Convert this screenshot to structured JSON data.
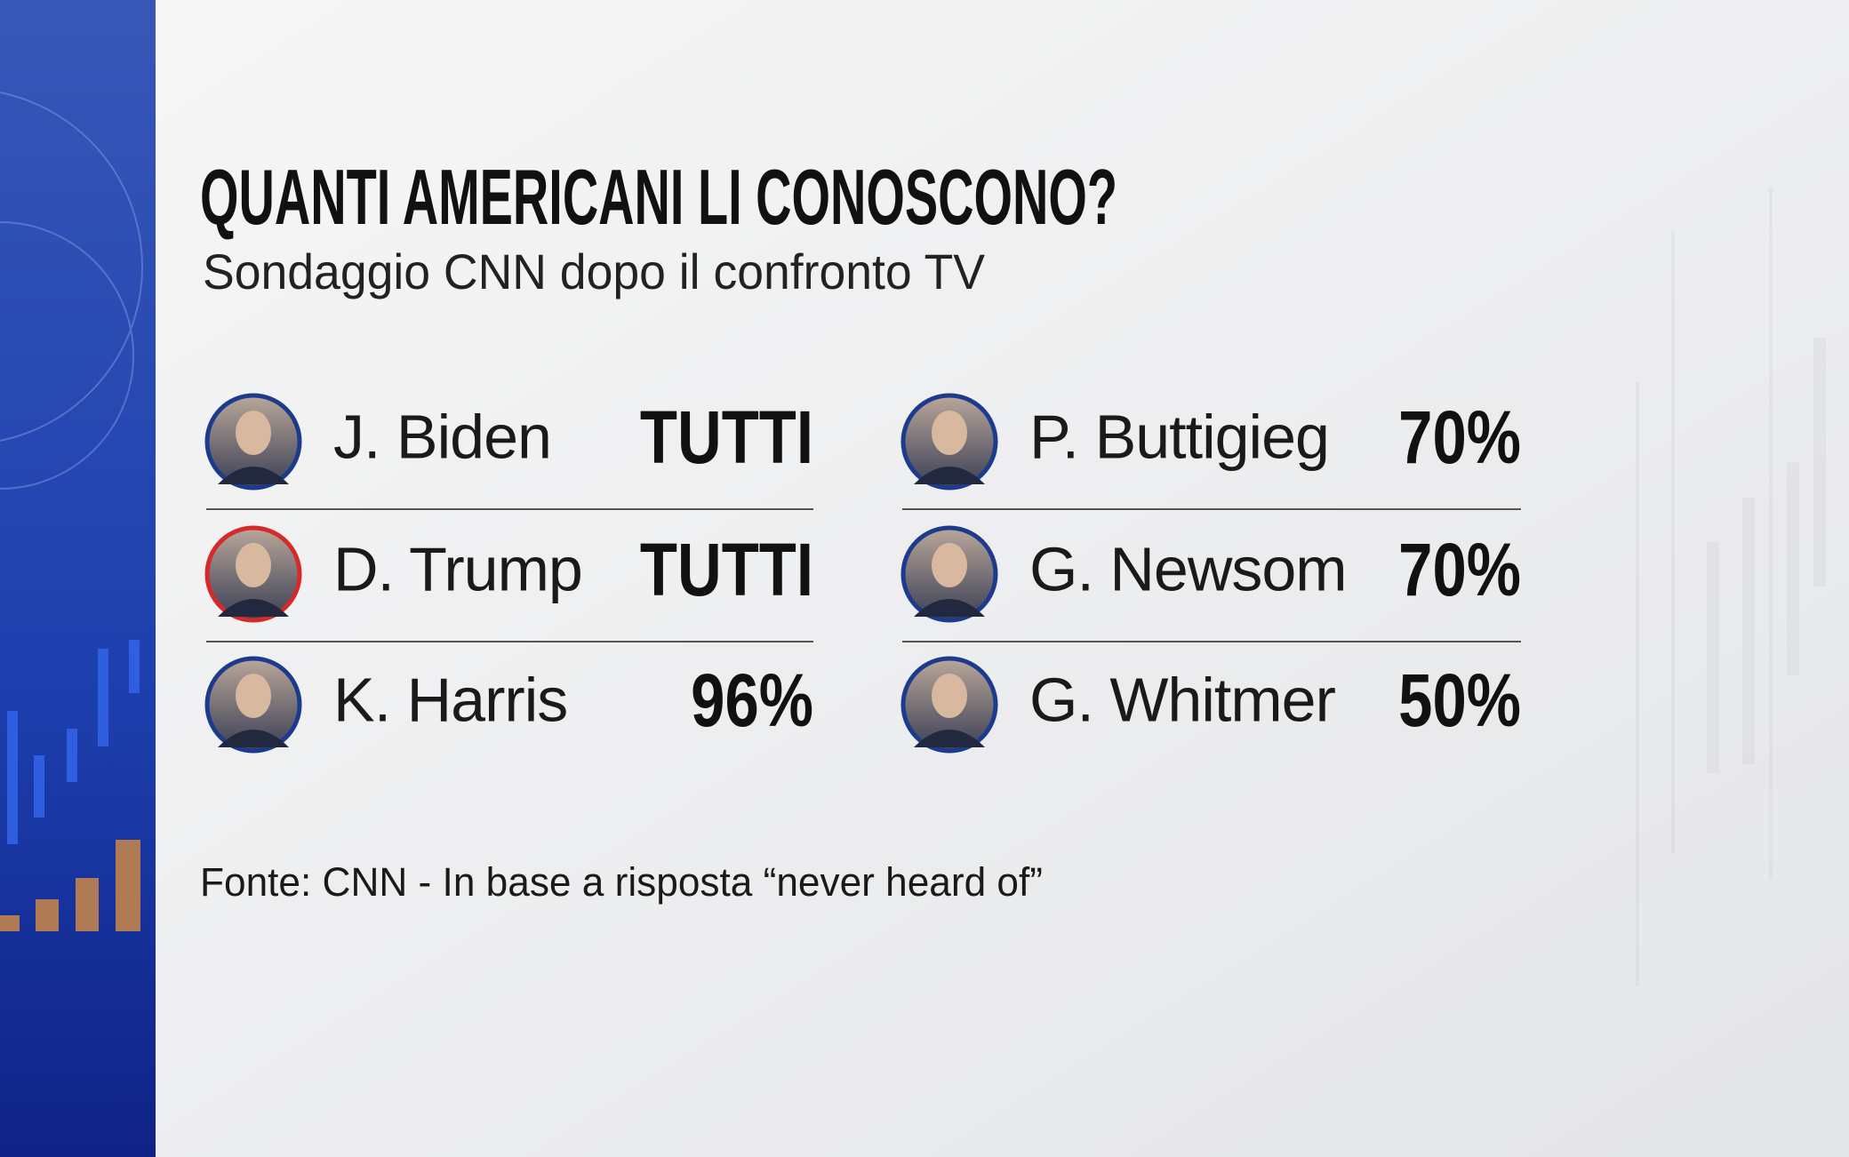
{
  "header": {
    "title": "QUANTI AMERICANI LI CONOSCONO?",
    "subtitle": "Sondaggio CNN dopo il confronto TV"
  },
  "people": [
    {
      "name": "J. Biden",
      "value": "TUTTI",
      "color": "#1d3b8c"
    },
    {
      "name": "D. Trump",
      "value": "TUTTI",
      "color": "#d42a2a"
    },
    {
      "name": "K. Harris",
      "value": "96%",
      "color": "#1d3b8c"
    },
    {
      "name": "P. Buttigieg",
      "value": "70%",
      "color": "#1d3b8c"
    },
    {
      "name": "G. Newsom",
      "value": "70%",
      "color": "#1d3b8c"
    },
    {
      "name": "G. Whitmer",
      "value": "50%",
      "color": "#1d3b8c"
    }
  ],
  "footer": "Fonte: CNN - In base a  risposta “never heard of”"
}
